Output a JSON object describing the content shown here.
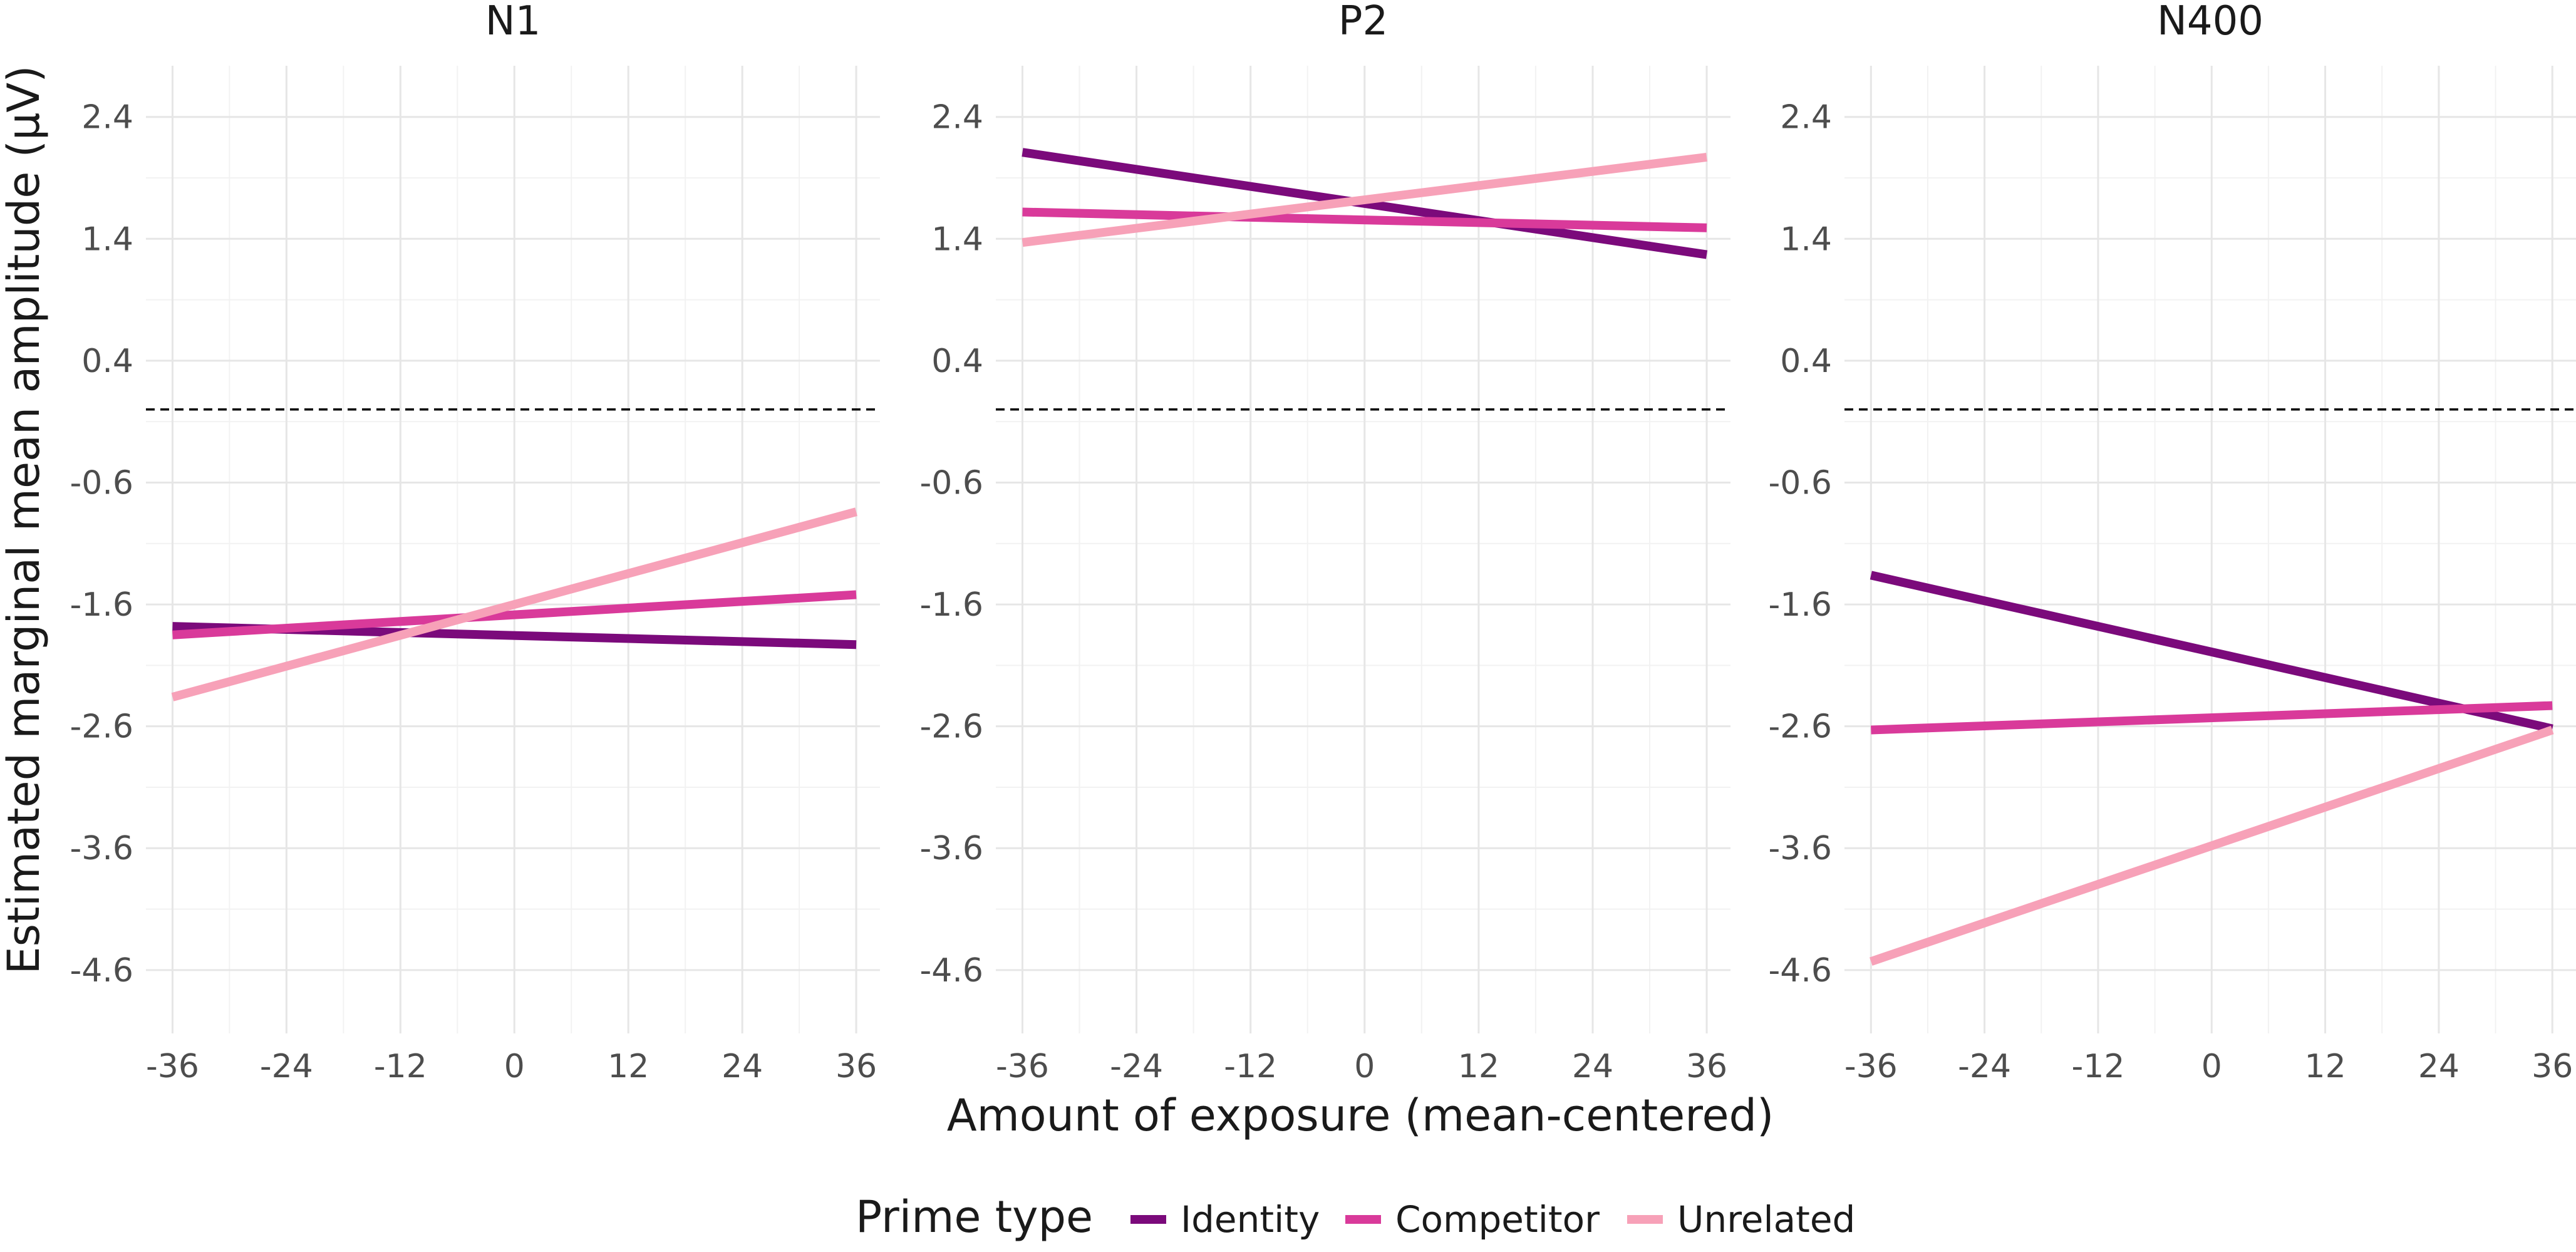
{
  "chart_data": {
    "type": "line",
    "xlabel": "Amount of exposure (mean-centered)",
    "ylabel": "Estimated marginal mean amplitude (µV)",
    "xlim": [
      -36,
      36
    ],
    "ylim": [
      -4.6,
      2.4
    ],
    "x_ticks": [
      -36,
      -24,
      -12,
      0,
      12,
      24,
      36
    ],
    "y_ticks": [
      2.4,
      1.4,
      0.4,
      -0.6,
      -1.6,
      -2.6,
      -3.6,
      -4.6
    ],
    "reference_line": {
      "y": 0,
      "style": "dashed"
    },
    "grid": true,
    "legend": {
      "title": "Prime type",
      "position": "bottom",
      "entries": [
        {
          "name": "Identity",
          "color": "#7b0a7b"
        },
        {
          "name": "Competitor",
          "color": "#d93a9a"
        },
        {
          "name": "Unrelated",
          "color": "#f7a1b8"
        }
      ]
    },
    "panels": [
      {
        "title": "N1",
        "series": [
          {
            "name": "Identity",
            "x": [
              -36,
              36
            ],
            "y": [
              -1.78,
              -1.93
            ]
          },
          {
            "name": "Competitor",
            "x": [
              -36,
              36
            ],
            "y": [
              -1.85,
              -1.52
            ]
          },
          {
            "name": "Unrelated",
            "x": [
              -36,
              36
            ],
            "y": [
              -2.36,
              -0.84
            ]
          }
        ]
      },
      {
        "title": "P2",
        "series": [
          {
            "name": "Identity",
            "x": [
              -36,
              36
            ],
            "y": [
              2.11,
              1.27
            ]
          },
          {
            "name": "Competitor",
            "x": [
              -36,
              36
            ],
            "y": [
              1.62,
              1.49
            ]
          },
          {
            "name": "Unrelated",
            "x": [
              -36,
              36
            ],
            "y": [
              1.37,
              2.07
            ]
          }
        ]
      },
      {
        "title": "N400",
        "series": [
          {
            "name": "Identity",
            "x": [
              -36,
              36
            ],
            "y": [
              -1.36,
              -2.62
            ]
          },
          {
            "name": "Competitor",
            "x": [
              -36,
              36
            ],
            "y": [
              -2.63,
              -2.43
            ]
          },
          {
            "name": "Unrelated",
            "x": [
              -36,
              36
            ],
            "y": [
              -4.53,
              -2.63
            ]
          }
        ]
      }
    ]
  }
}
